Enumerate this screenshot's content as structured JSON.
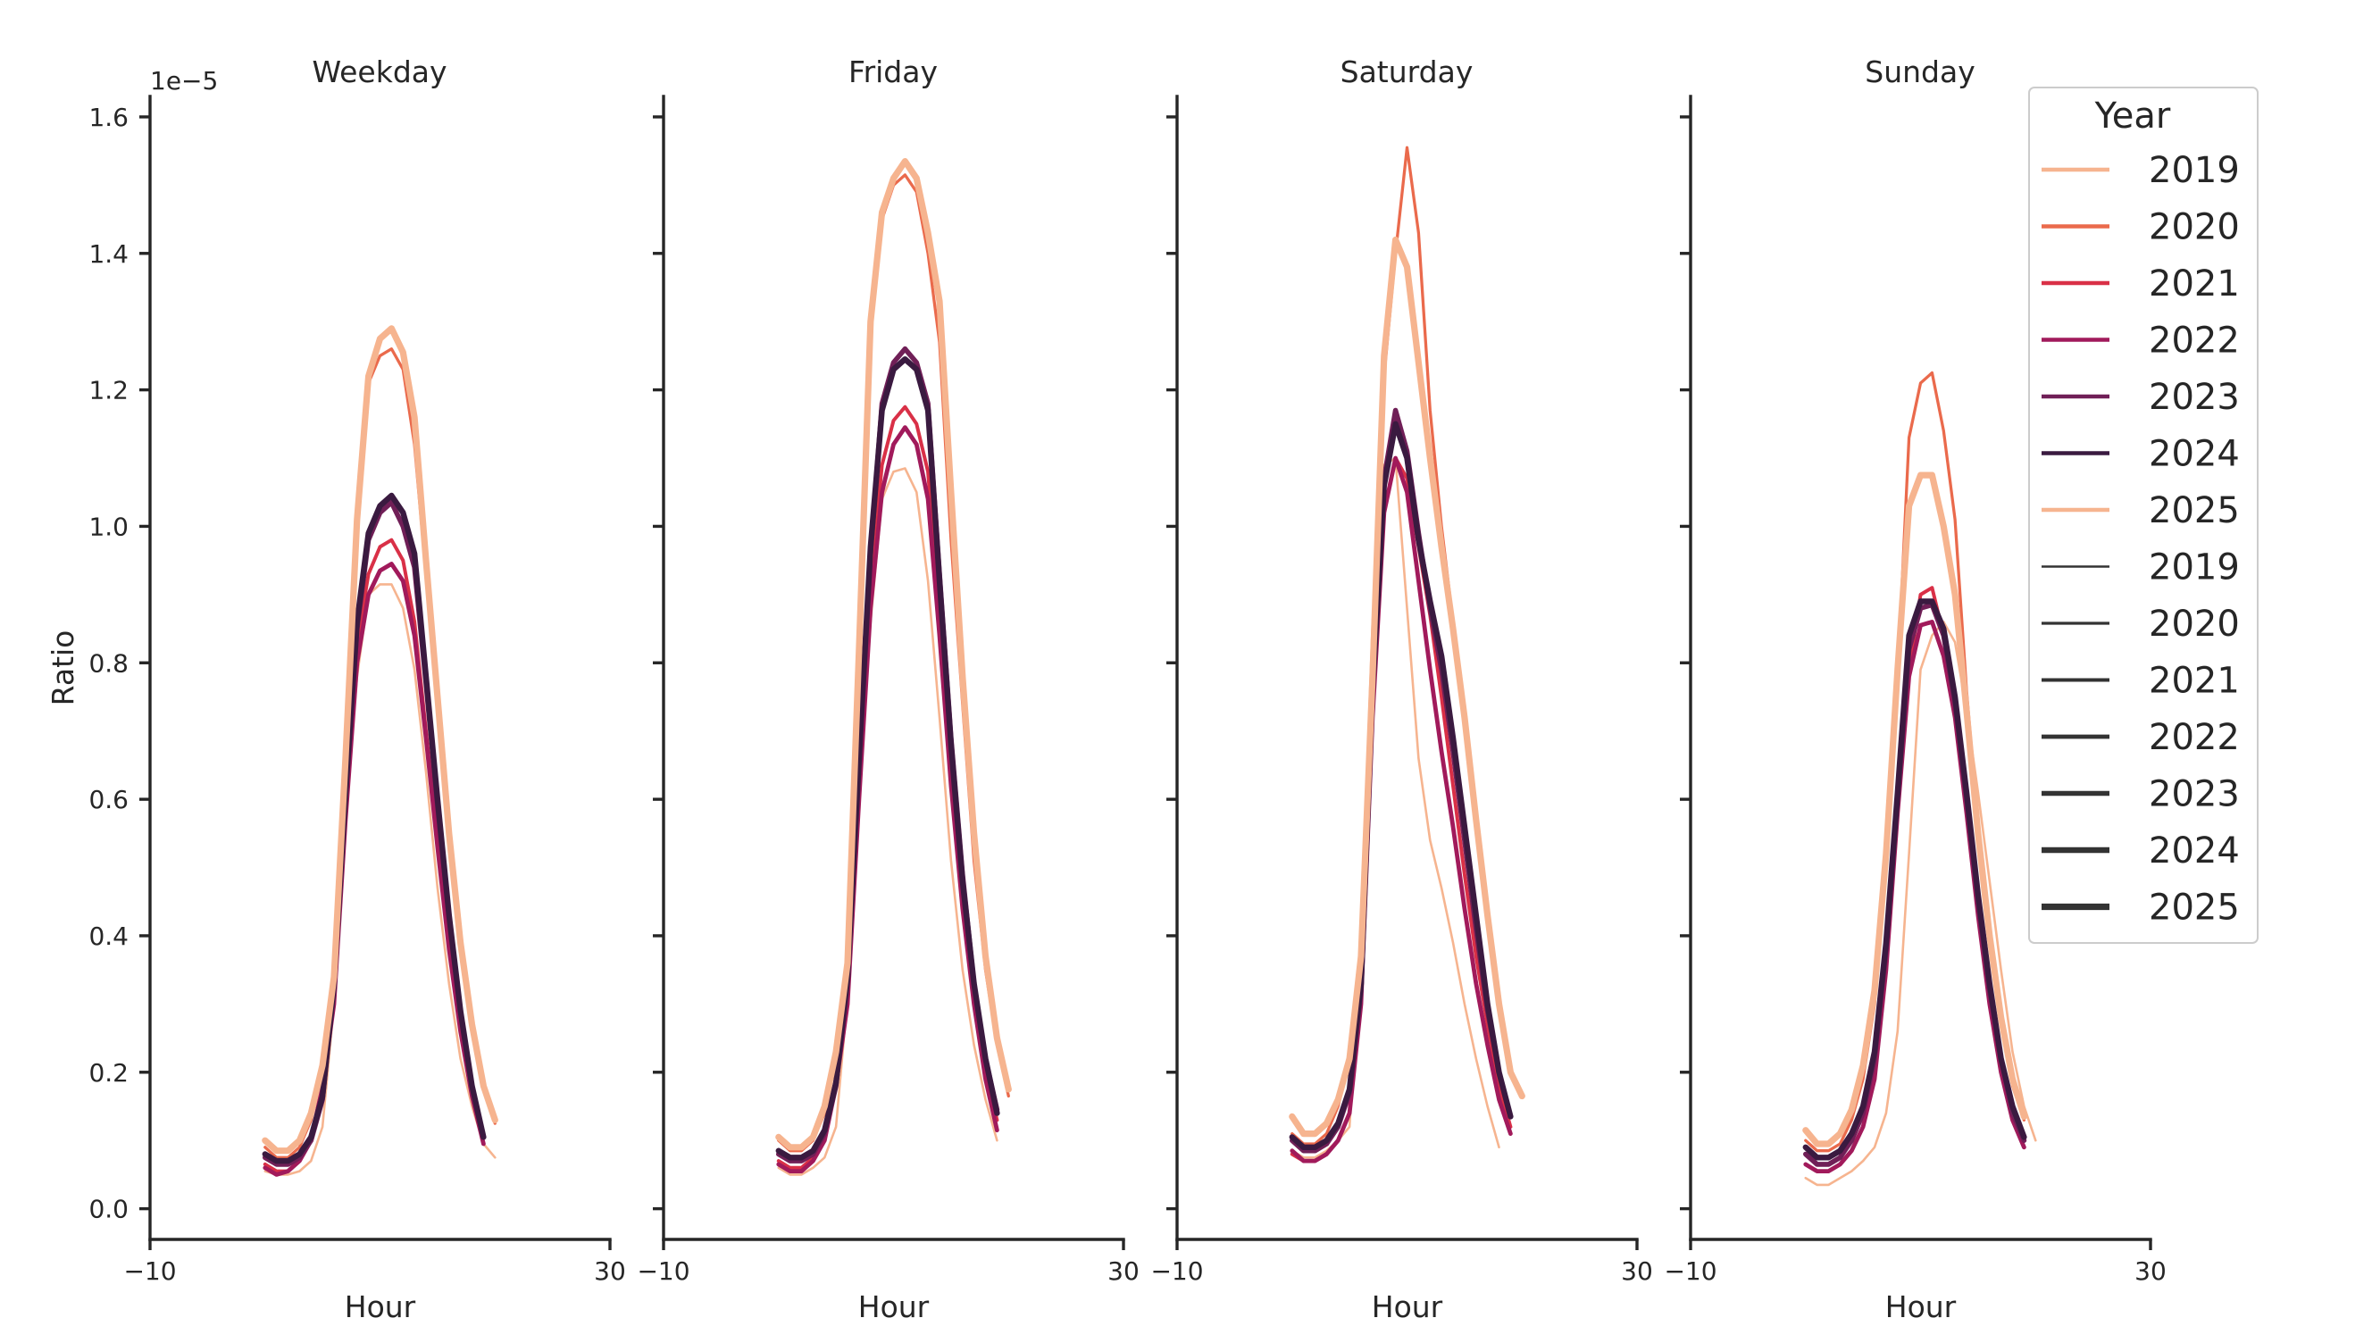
{
  "chart_data": {
    "type": "line",
    "y_offset_label": "1e−5",
    "y_axis_label": "Ratio",
    "x_axis_label": "Hour",
    "xlim": [
      -10,
      30
    ],
    "ylim": [
      -0.045,
      1.63
    ],
    "x_ticks": [
      -10,
      30
    ],
    "x_tick_labels": [
      "−10",
      "30"
    ],
    "y_ticks": [
      0.0,
      0.2,
      0.4,
      0.6,
      0.8,
      1.0,
      1.2,
      1.4,
      1.6
    ],
    "y_tick_labels": [
      "0.0",
      "0.2",
      "0.4",
      "0.6",
      "0.8",
      "1.0",
      "1.2",
      "1.4",
      "1.6"
    ],
    "x": [
      0,
      1,
      2,
      3,
      4,
      5,
      6,
      7,
      8,
      9,
      10,
      11,
      12,
      13,
      14,
      15,
      16,
      17,
      18,
      19,
      20,
      21,
      22,
      23
    ],
    "legend": {
      "title": "Year",
      "placement": "top-right",
      "hue_entries": [
        {
          "label": "2019",
          "color": "#f6b48f"
        },
        {
          "label": "2020",
          "color": "#ea6a4c"
        },
        {
          "label": "2021",
          "color": "#d93047"
        },
        {
          "label": "2022",
          "color": "#a11a5b"
        },
        {
          "label": "2023",
          "color": "#701f57"
        },
        {
          "label": "2024",
          "color": "#3a1a40"
        },
        {
          "label": "2025",
          "color": "#f6b48f"
        }
      ],
      "size_entries": [
        {
          "label": "2019",
          "color": "#333333"
        },
        {
          "label": "2020",
          "color": "#333333"
        },
        {
          "label": "2021",
          "color": "#333333"
        },
        {
          "label": "2022",
          "color": "#333333"
        },
        {
          "label": "2023",
          "color": "#333333"
        },
        {
          "label": "2024",
          "color": "#333333"
        },
        {
          "label": "2025",
          "color": "#333333"
        }
      ]
    },
    "panels": [
      {
        "title": "Weekday",
        "series": [
          {
            "year": "2019",
            "values": [
              0.055,
              0.05,
              0.05,
              0.055,
              0.07,
              0.12,
              0.3,
              0.58,
              0.78,
              0.9,
              0.915,
              0.915,
              0.88,
              0.79,
              0.64,
              0.47,
              0.33,
              0.22,
              0.15,
              0.095,
              0.075
            ]
          },
          {
            "year": "2020",
            "values": [
              0.09,
              0.075,
              0.075,
              0.09,
              0.13,
              0.2,
              0.33,
              0.64,
              0.99,
              1.21,
              1.25,
              1.26,
              1.23,
              1.12,
              0.93,
              0.73,
              0.53,
              0.38,
              0.27,
              0.18,
              0.125
            ]
          },
          {
            "year": "2021",
            "values": [
              0.065,
              0.055,
              0.055,
              0.07,
              0.1,
              0.18,
              0.32,
              0.6,
              0.83,
              0.93,
              0.97,
              0.98,
              0.95,
              0.86,
              0.7,
              0.54,
              0.39,
              0.27,
              0.17,
              0.105
            ]
          },
          {
            "year": "2022",
            "values": [
              0.06,
              0.05,
              0.055,
              0.07,
              0.1,
              0.18,
              0.3,
              0.57,
              0.8,
              0.9,
              0.935,
              0.945,
              0.92,
              0.84,
              0.69,
              0.53,
              0.38,
              0.26,
              0.165,
              0.095
            ]
          },
          {
            "year": "2023",
            "values": [
              0.075,
              0.065,
              0.065,
              0.075,
              0.1,
              0.16,
              0.32,
              0.6,
              0.85,
              0.98,
              1.02,
              1.035,
              1.0,
              0.94,
              0.77,
              0.59,
              0.43,
              0.29,
              0.18,
              0.105
            ]
          },
          {
            "year": "2024",
            "values": [
              0.08,
              0.07,
              0.07,
              0.08,
              0.105,
              0.165,
              0.33,
              0.61,
              0.86,
              0.99,
              1.03,
              1.045,
              1.02,
              0.96,
              0.78,
              0.6,
              0.43,
              0.29,
              0.18,
              0.105
            ]
          },
          {
            "year": "2025",
            "values": [
              0.1,
              0.085,
              0.085,
              0.1,
              0.14,
              0.21,
              0.34,
              0.66,
              1.01,
              1.22,
              1.275,
              1.29,
              1.255,
              1.16,
              0.95,
              0.75,
              0.55,
              0.39,
              0.27,
              0.18,
              0.13
            ]
          }
        ]
      },
      {
        "title": "Friday",
        "series": [
          {
            "year": "2019",
            "values": [
              0.06,
              0.05,
              0.05,
              0.06,
              0.075,
              0.12,
              0.31,
              0.6,
              0.86,
              1.04,
              1.08,
              1.085,
              1.05,
              0.92,
              0.72,
              0.51,
              0.35,
              0.24,
              0.16,
              0.1
            ]
          },
          {
            "year": "2020",
            "values": [
              0.1,
              0.085,
              0.085,
              0.1,
              0.14,
              0.22,
              0.35,
              0.8,
              1.3,
              1.45,
              1.5,
              1.515,
              1.49,
              1.4,
              1.27,
              0.98,
              0.74,
              0.51,
              0.35,
              0.24,
              0.165
            ]
          },
          {
            "year": "2021",
            "values": [
              0.07,
              0.06,
              0.06,
              0.075,
              0.105,
              0.18,
              0.32,
              0.62,
              0.91,
              1.09,
              1.155,
              1.175,
              1.15,
              1.08,
              0.87,
              0.64,
              0.45,
              0.31,
              0.2,
              0.13
            ]
          },
          {
            "year": "2022",
            "values": [
              0.065,
              0.055,
              0.055,
              0.07,
              0.1,
              0.18,
              0.3,
              0.6,
              0.88,
              1.05,
              1.12,
              1.145,
              1.12,
              1.04,
              0.84,
              0.62,
              0.44,
              0.3,
              0.19,
              0.115
            ]
          },
          {
            "year": "2023",
            "values": [
              0.08,
              0.07,
              0.07,
              0.08,
              0.11,
              0.18,
              0.33,
              0.65,
              0.96,
              1.18,
              1.24,
              1.26,
              1.24,
              1.18,
              0.93,
              0.69,
              0.49,
              0.33,
              0.22,
              0.145
            ]
          },
          {
            "year": "2024",
            "values": [
              0.085,
              0.075,
              0.075,
              0.085,
              0.115,
              0.185,
              0.34,
              0.66,
              0.97,
              1.17,
              1.23,
              1.245,
              1.23,
              1.17,
              0.92,
              0.68,
              0.48,
              0.33,
              0.22,
              0.14
            ]
          },
          {
            "year": "2025",
            "values": [
              0.105,
              0.09,
              0.09,
              0.105,
              0.15,
              0.23,
              0.36,
              0.82,
              1.3,
              1.46,
              1.51,
              1.535,
              1.51,
              1.43,
              1.33,
              1.05,
              0.78,
              0.55,
              0.37,
              0.25,
              0.175
            ]
          }
        ]
      },
      {
        "title": "Saturday",
        "series": [
          {
            "year": "2019",
            "values": [
              0.085,
              0.075,
              0.075,
              0.085,
              0.1,
              0.12,
              0.4,
              0.86,
              1.09,
              1.1,
              0.88,
              0.66,
              0.54,
              0.47,
              0.39,
              0.3,
              0.22,
              0.15,
              0.09
            ]
          },
          {
            "year": "2020",
            "values": [
              0.11,
              0.095,
              0.095,
              0.11,
              0.15,
              0.22,
              0.36,
              0.76,
              1.22,
              1.4,
              1.555,
              1.43,
              1.17,
              1.0,
              0.86,
              0.72,
              0.57,
              0.43,
              0.3,
              0.2
            ]
          },
          {
            "year": "2021",
            "values": [
              0.08,
              0.07,
              0.07,
              0.08,
              0.1,
              0.14,
              0.3,
              0.72,
              1.02,
              1.1,
              1.07,
              0.97,
              0.87,
              0.75,
              0.62,
              0.49,
              0.37,
              0.27,
              0.18,
              0.12
            ]
          },
          {
            "year": "2022",
            "values": [
              0.085,
              0.07,
              0.07,
              0.08,
              0.1,
              0.14,
              0.3,
              0.72,
              1.02,
              1.1,
              1.05,
              0.92,
              0.79,
              0.67,
              0.56,
              0.44,
              0.33,
              0.24,
              0.16,
              0.11
            ]
          },
          {
            "year": "2023",
            "values": [
              0.1,
              0.085,
              0.085,
              0.095,
              0.12,
              0.17,
              0.32,
              0.76,
              1.07,
              1.17,
              1.11,
              0.99,
              0.88,
              0.79,
              0.67,
              0.54,
              0.41,
              0.29,
              0.2,
              0.135
            ]
          },
          {
            "year": "2024",
            "values": [
              0.105,
              0.09,
              0.09,
              0.1,
              0.125,
              0.175,
              0.33,
              0.76,
              1.06,
              1.15,
              1.1,
              0.98,
              0.89,
              0.81,
              0.69,
              0.56,
              0.43,
              0.3,
              0.2,
              0.135
            ]
          },
          {
            "year": "2025",
            "values": [
              0.135,
              0.11,
              0.11,
              0.125,
              0.16,
              0.22,
              0.37,
              0.78,
              1.25,
              1.42,
              1.38,
              1.24,
              1.1,
              0.97,
              0.85,
              0.72,
              0.57,
              0.43,
              0.3,
              0.2,
              0.165
            ]
          }
        ]
      },
      {
        "title": "Sunday",
        "series": [
          {
            "year": "2019",
            "values": [
              0.045,
              0.035,
              0.035,
              0.045,
              0.055,
              0.07,
              0.09,
              0.14,
              0.26,
              0.52,
              0.79,
              0.84,
              0.86,
              0.83,
              0.73,
              0.61,
              0.48,
              0.35,
              0.23,
              0.15,
              0.1
            ]
          },
          {
            "year": "2020",
            "values": [
              0.1,
              0.085,
              0.085,
              0.095,
              0.13,
              0.19,
              0.3,
              0.5,
              0.78,
              1.13,
              1.21,
              1.225,
              1.14,
              1.01,
              0.76,
              0.56,
              0.39,
              0.27,
              0.18,
              0.13
            ]
          },
          {
            "year": "2021",
            "values": [
              0.065,
              0.055,
              0.055,
              0.065,
              0.085,
              0.12,
              0.19,
              0.35,
              0.58,
              0.79,
              0.9,
              0.91,
              0.84,
              0.74,
              0.59,
              0.43,
              0.3,
              0.2,
              0.13,
              0.09
            ]
          },
          {
            "year": "2022",
            "values": [
              0.065,
              0.055,
              0.055,
              0.065,
              0.085,
              0.12,
              0.19,
              0.35,
              0.58,
              0.78,
              0.855,
              0.86,
              0.81,
              0.72,
              0.58,
              0.43,
              0.3,
              0.2,
              0.13,
              0.09
            ]
          },
          {
            "year": "2023",
            "values": [
              0.08,
              0.065,
              0.065,
              0.075,
              0.1,
              0.14,
              0.22,
              0.38,
              0.6,
              0.82,
              0.88,
              0.885,
              0.84,
              0.74,
              0.6,
              0.45,
              0.32,
              0.22,
              0.14,
              0.1
            ]
          },
          {
            "year": "2024",
            "values": [
              0.09,
              0.075,
              0.075,
              0.085,
              0.11,
              0.15,
              0.23,
              0.39,
              0.61,
              0.84,
              0.89,
              0.89,
              0.85,
              0.75,
              0.61,
              0.46,
              0.33,
              0.22,
              0.15,
              0.105
            ]
          },
          {
            "year": "2025",
            "values": [
              0.115,
              0.095,
              0.095,
              0.11,
              0.145,
              0.21,
              0.32,
              0.52,
              0.79,
              1.03,
              1.075,
              1.075,
              1.0,
              0.9,
              0.73,
              0.55,
              0.4,
              0.28,
              0.19,
              0.135
            ]
          }
        ]
      }
    ]
  }
}
